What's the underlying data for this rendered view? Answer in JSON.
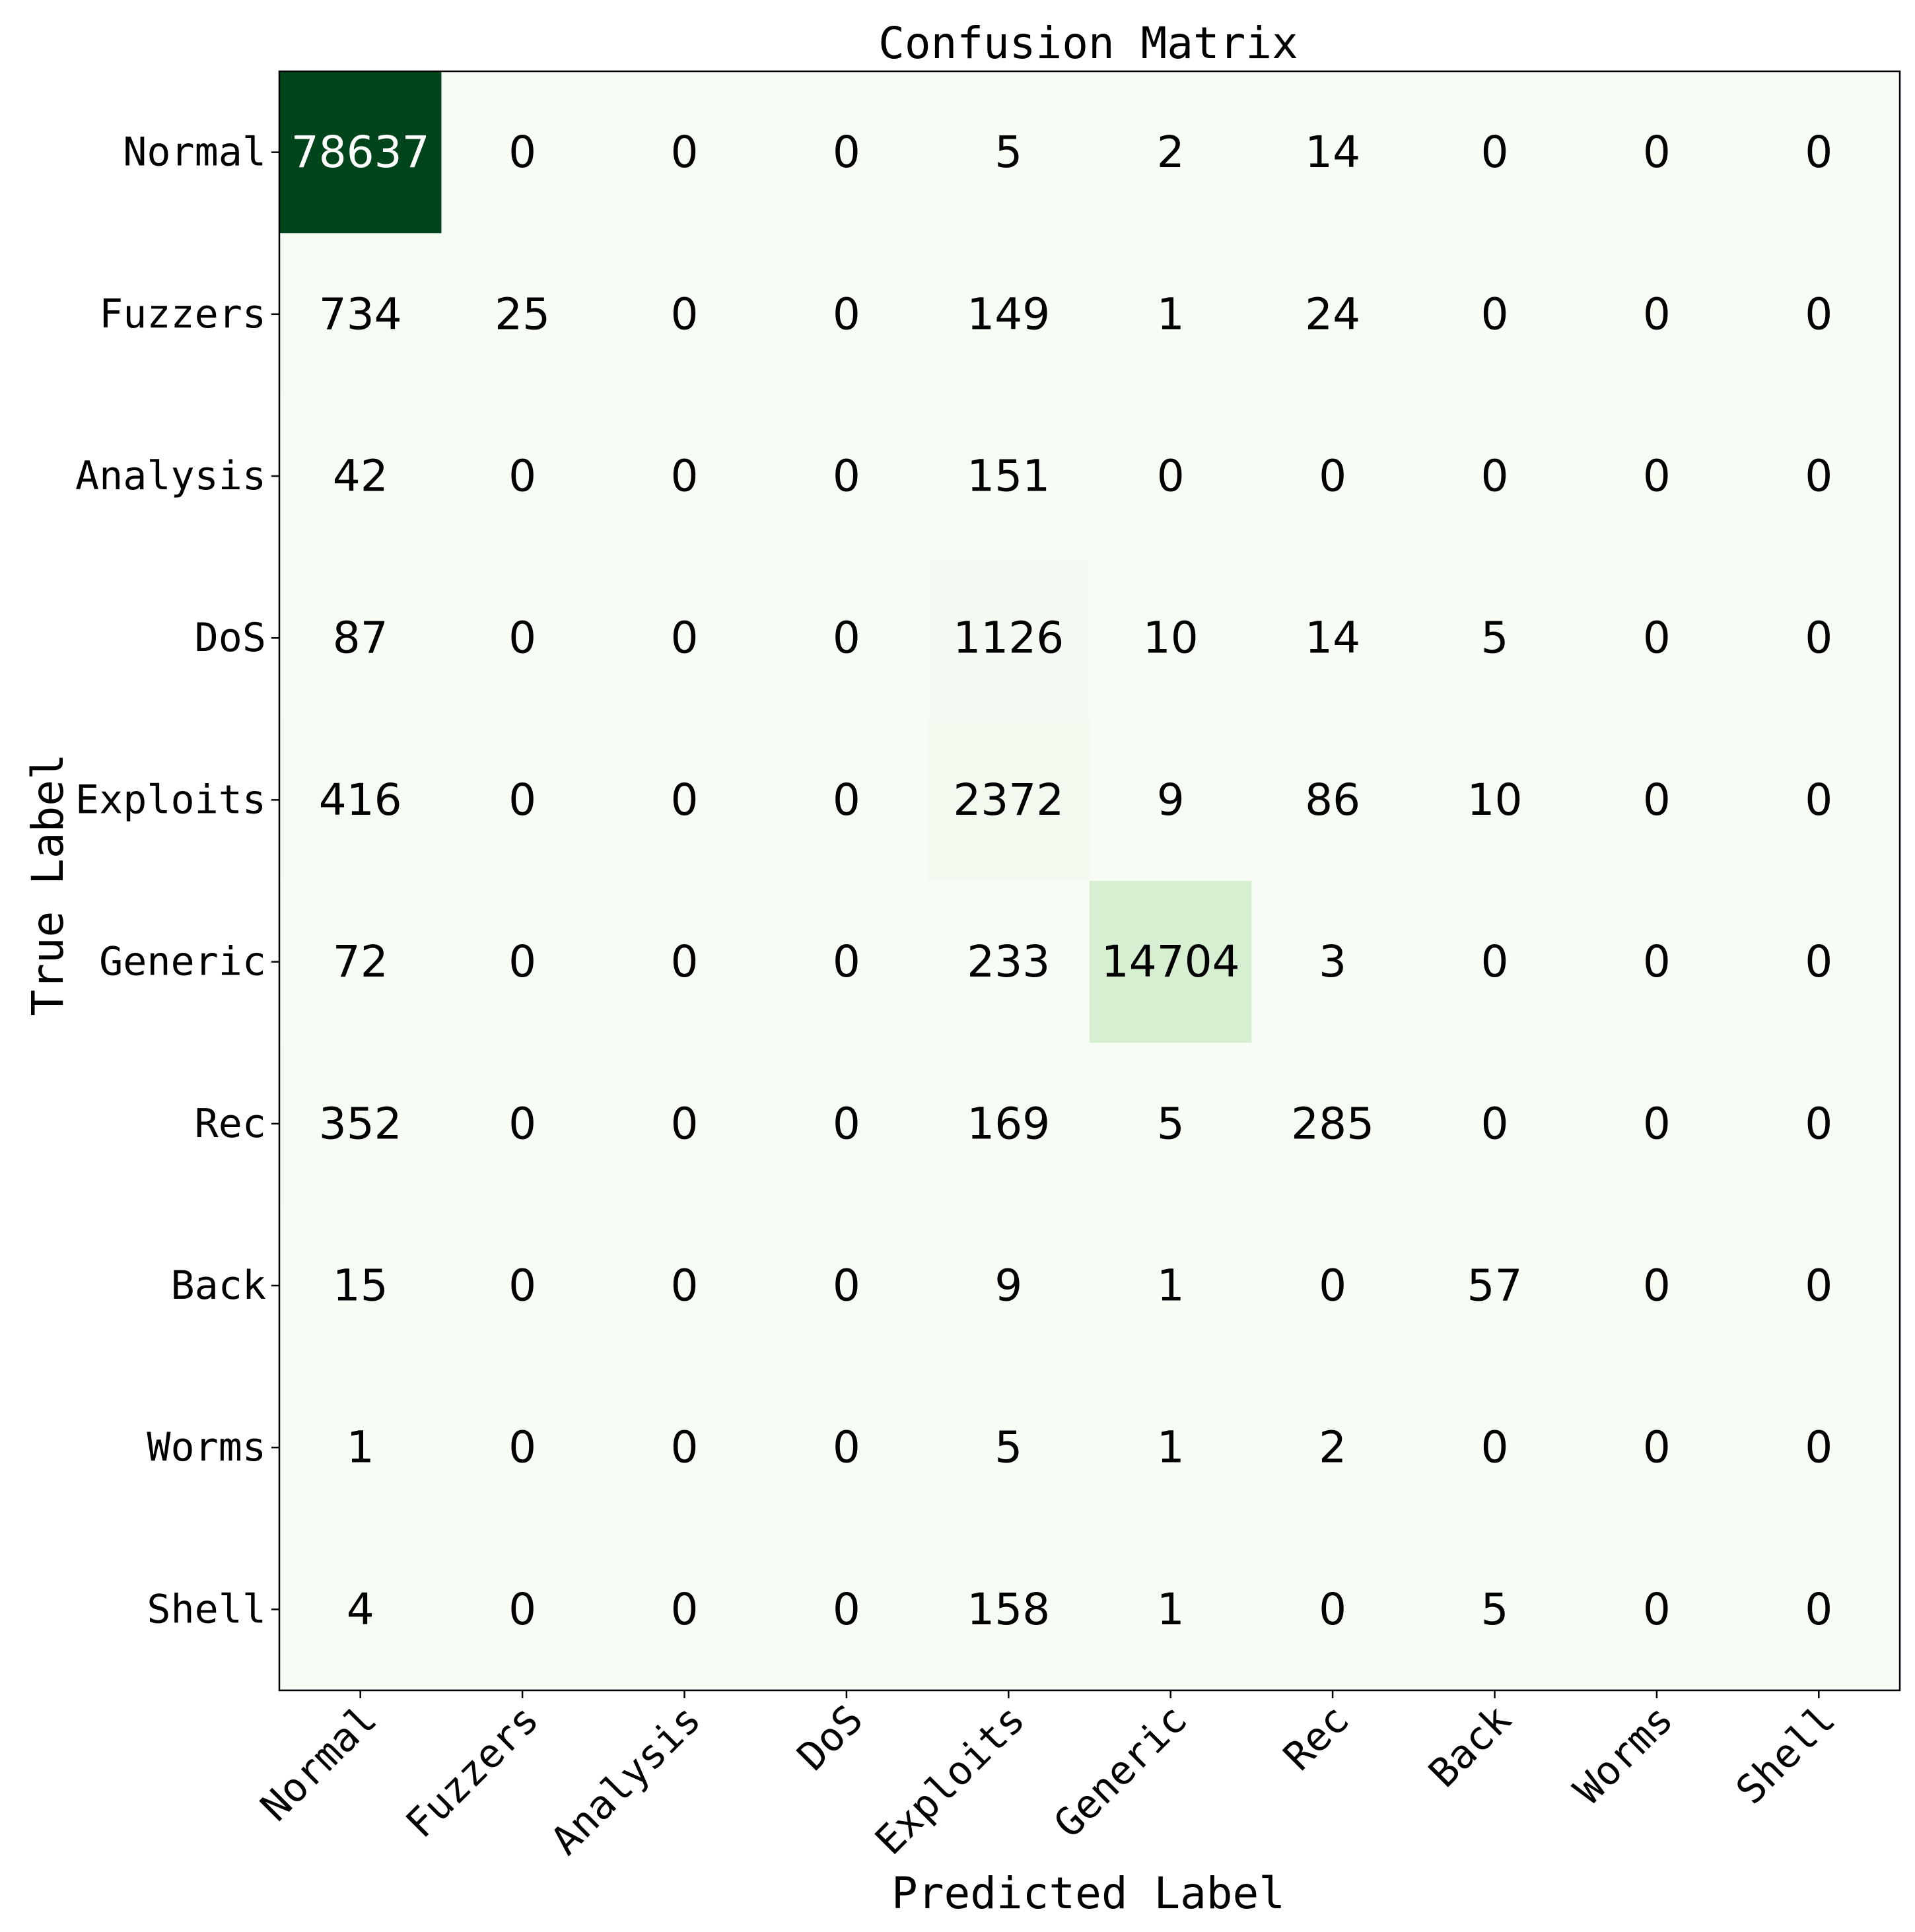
{
  "chart_data": {
    "type": "heatmap",
    "title": "Confusion Matrix",
    "xlabel": "Predicted Label",
    "ylabel": "True Label",
    "x_categories": [
      "Normal",
      "Fuzzers",
      "Analysis",
      "DoS",
      "Exploits",
      "Generic",
      "Rec",
      "Back",
      "Worms",
      "Shell"
    ],
    "y_categories": [
      "Normal",
      "Fuzzers",
      "Analysis",
      "DoS",
      "Exploits",
      "Generic",
      "Rec",
      "Back",
      "Worms",
      "Shell"
    ],
    "values": [
      [
        78637,
        0,
        0,
        0,
        5,
        2,
        14,
        0,
        0,
        0
      ],
      [
        734,
        25,
        0,
        0,
        149,
        1,
        24,
        0,
        0,
        0
      ],
      [
        42,
        0,
        0,
        0,
        151,
        0,
        0,
        0,
        0,
        0
      ],
      [
        87,
        0,
        0,
        0,
        1126,
        10,
        14,
        5,
        0,
        0
      ],
      [
        416,
        0,
        0,
        0,
        2372,
        9,
        86,
        10,
        0,
        0
      ],
      [
        72,
        0,
        0,
        0,
        233,
        14704,
        3,
        0,
        0,
        0
      ],
      [
        352,
        0,
        0,
        0,
        169,
        5,
        285,
        0,
        0,
        0
      ],
      [
        15,
        0,
        0,
        0,
        9,
        1,
        0,
        57,
        0,
        0
      ],
      [
        1,
        0,
        0,
        0,
        5,
        1,
        2,
        0,
        0,
        0
      ],
      [
        4,
        0,
        0,
        0,
        158,
        1,
        0,
        5,
        0,
        0
      ]
    ],
    "colormap": "Greens",
    "colors": {
      "low": "#f7fcf5",
      "high": "#00441b",
      "text_dark": "#000000",
      "text_light": "#ffffff"
    },
    "colorbar": false,
    "grid": false
  }
}
